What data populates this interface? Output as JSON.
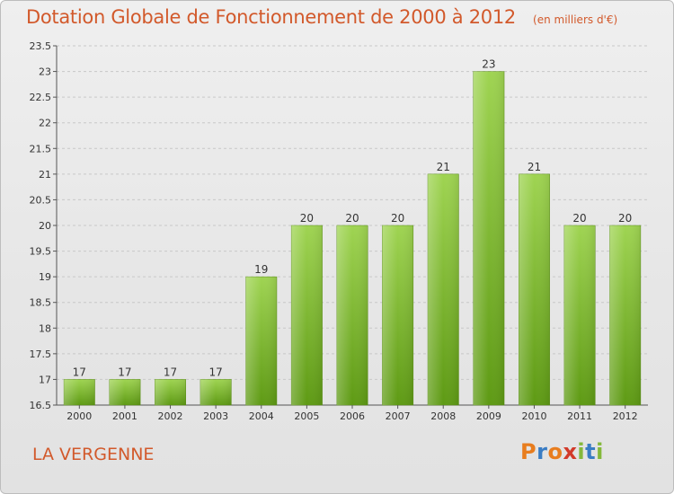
{
  "title": "Dotation Globale de Fonctionnement de 2000 à 2012",
  "unit": "(en milliers d'€)",
  "commune": "LA VERGENNE",
  "logo": {
    "letters": [
      "P",
      "r",
      "o",
      "x",
      "i",
      "t",
      "i"
    ],
    "colors": [
      "#e87d1e",
      "#3a7dc4",
      "#e87d1e",
      "#d23a2a",
      "#84b83a",
      "#3a7dc4",
      "#84b83a"
    ]
  },
  "colors": {
    "title": "#d2592b",
    "bar_top": "#9fd452",
    "bar_bottom": "#5e9a14",
    "axis": "#555555",
    "grid": "#c8c8c8"
  },
  "chart_data": {
    "type": "bar",
    "categories": [
      "2000",
      "2001",
      "2002",
      "2003",
      "2004",
      "2005",
      "2006",
      "2007",
      "2008",
      "2009",
      "2010",
      "2011",
      "2012"
    ],
    "values": [
      17,
      17,
      17,
      17,
      19,
      20,
      20,
      20,
      21,
      23,
      21,
      20,
      20
    ],
    "value_labels": [
      "17",
      "17",
      "17",
      "17",
      "19",
      "20",
      "20",
      "20",
      "21",
      "23",
      "21",
      "20",
      "20"
    ],
    "ylim": [
      16.5,
      23.5
    ],
    "yticks": [
      16.5,
      17,
      17.5,
      18,
      18.5,
      19,
      19.5,
      20,
      20.5,
      21,
      21.5,
      22,
      22.5,
      23,
      23.5
    ],
    "ytick_labels": [
      "16.5",
      "17",
      "17.5",
      "18",
      "18.5",
      "19",
      "19.5",
      "20",
      "20.5",
      "21",
      "21.5",
      "22",
      "22.5",
      "23",
      "23.5"
    ],
    "grid": true
  }
}
